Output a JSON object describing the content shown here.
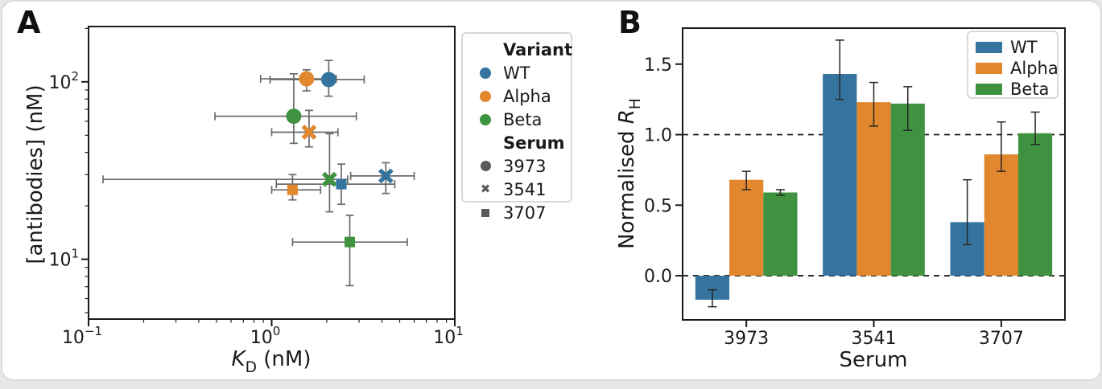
{
  "page": {
    "background": "#e7e7e7",
    "card_background": "#ffffff"
  },
  "colors": {
    "WT": "#35749F",
    "Alpha": "#E1882E",
    "Beta": "#3E9240",
    "serum_marker": "#5A5A5A",
    "error_bar_a": "#6A6A6A",
    "error_bar_b": "#262626",
    "axis": "#1A1A1A",
    "dashed_line": "#1A1A1A"
  },
  "icons": {
    "circle_marker": "●",
    "x_marker": "✖",
    "square_marker": "■"
  },
  "panel_a": {
    "label": "A",
    "legend": {
      "variant_header": "Variant",
      "variants": [
        {
          "label": "WT",
          "color_key": "WT"
        },
        {
          "label": "Alpha",
          "color_key": "Alpha"
        },
        {
          "label": "Beta",
          "color_key": "Beta"
        }
      ],
      "serum_header": "Serum",
      "serums": [
        {
          "label": "3973",
          "marker": "circle"
        },
        {
          "label": "3541",
          "marker": "x"
        },
        {
          "label": "3707",
          "marker": "square"
        }
      ]
    },
    "chart_data": {
      "type": "scatter",
      "xlabel_pre": "K",
      "xlabel_sub": "D",
      "xlabel_post": " (nM)",
      "ylabel": "[antibodies] (nM)",
      "xscale": "log",
      "yscale": "log",
      "xlim": [
        0.1,
        10
      ],
      "ylim": [
        4.6,
        205
      ],
      "grid": false,
      "xticks": [
        {
          "base": "10",
          "exp": "−1",
          "value": 0.1
        },
        {
          "base": "10",
          "exp": "0",
          "value": 1
        },
        {
          "base": "10",
          "exp": "1",
          "value": 10
        }
      ],
      "yticks": [
        {
          "base": "10",
          "exp": "1",
          "value": 10
        },
        {
          "base": "10",
          "exp": "2",
          "value": 100
        }
      ],
      "points": [
        {
          "variant": "WT",
          "serum": "3973",
          "marker": "circle",
          "x": 2.05,
          "y": 103,
          "xerr": [
            0.98,
            3.2
          ],
          "yerr": [
            83,
            132
          ]
        },
        {
          "variant": "Alpha",
          "serum": "3973",
          "marker": "circle",
          "x": 1.55,
          "y": 104,
          "xerr": [
            0.87,
            2.25
          ],
          "yerr": [
            89,
            117
          ]
        },
        {
          "variant": "Beta",
          "serum": "3973",
          "marker": "circle",
          "x": 1.32,
          "y": 64,
          "xerr": [
            0.49,
            2.9
          ],
          "yerr": [
            45,
            111
          ]
        },
        {
          "variant": "WT",
          "serum": "3541",
          "marker": "x",
          "x": 4.2,
          "y": 29.5,
          "xerr": [
            2.7,
            6.0
          ],
          "yerr": [
            23.5,
            35
          ]
        },
        {
          "variant": "Alpha",
          "serum": "3541",
          "marker": "x",
          "x": 1.6,
          "y": 52,
          "xerr": [
            1.0,
            2.3
          ],
          "yerr": [
            43,
            69
          ]
        },
        {
          "variant": "Beta",
          "serum": "3541",
          "marker": "x",
          "x": 2.07,
          "y": 28.2,
          "xerr": [
            0.12,
            2.6
          ],
          "yerr": [
            18.5,
            51
          ]
        },
        {
          "variant": "WT",
          "serum": "3707",
          "marker": "square",
          "x": 2.4,
          "y": 26.5,
          "xerr": [
            1.06,
            4.7
          ],
          "yerr": [
            20.4,
            34.4
          ]
        },
        {
          "variant": "Alpha",
          "serum": "3707",
          "marker": "square",
          "x": 1.3,
          "y": 24.6,
          "xerr": [
            1.0,
            1.85
          ],
          "yerr": [
            21.6,
            30
          ]
        },
        {
          "variant": "Beta",
          "serum": "3707",
          "marker": "square",
          "x": 2.67,
          "y": 12.5,
          "xerr": [
            1.3,
            5.5
          ],
          "yerr": [
            7.1,
            17.7
          ]
        }
      ]
    }
  },
  "panel_b": {
    "label": "B",
    "chart_data": {
      "type": "bar",
      "xlabel": "Serum",
      "ylabel_pre": "Normalised ",
      "ylabel_ital": "R",
      "ylabel_sub": "H",
      "categories": [
        "3973",
        "3541",
        "3707"
      ],
      "series": [
        {
          "name": "WT",
          "values": [
            -0.17,
            1.43,
            0.38
          ],
          "err_low": [
            -0.22,
            1.25,
            0.22
          ],
          "err_high": [
            -0.1,
            1.67,
            0.68
          ]
        },
        {
          "name": "Alpha",
          "values": [
            0.68,
            1.23,
            0.86
          ],
          "err_low": [
            0.61,
            1.06,
            0.74
          ],
          "err_high": [
            0.74,
            1.37,
            1.09
          ]
        },
        {
          "name": "Beta",
          "values": [
            0.59,
            1.22,
            1.01
          ],
          "err_low": [
            0.57,
            1.03,
            0.93
          ],
          "err_high": [
            0.61,
            1.34,
            1.16
          ]
        }
      ],
      "ylim": [
        -0.313,
        1.755
      ],
      "yticks": [
        {
          "label": "0.0",
          "value": 0
        },
        {
          "label": "0.5",
          "value": 0.5
        },
        {
          "label": "1.0",
          "value": 1
        },
        {
          "label": "1.5",
          "value": 1.5
        }
      ],
      "hlines": [
        0,
        1
      ],
      "legend_position": "upper right",
      "grid": false
    }
  }
}
